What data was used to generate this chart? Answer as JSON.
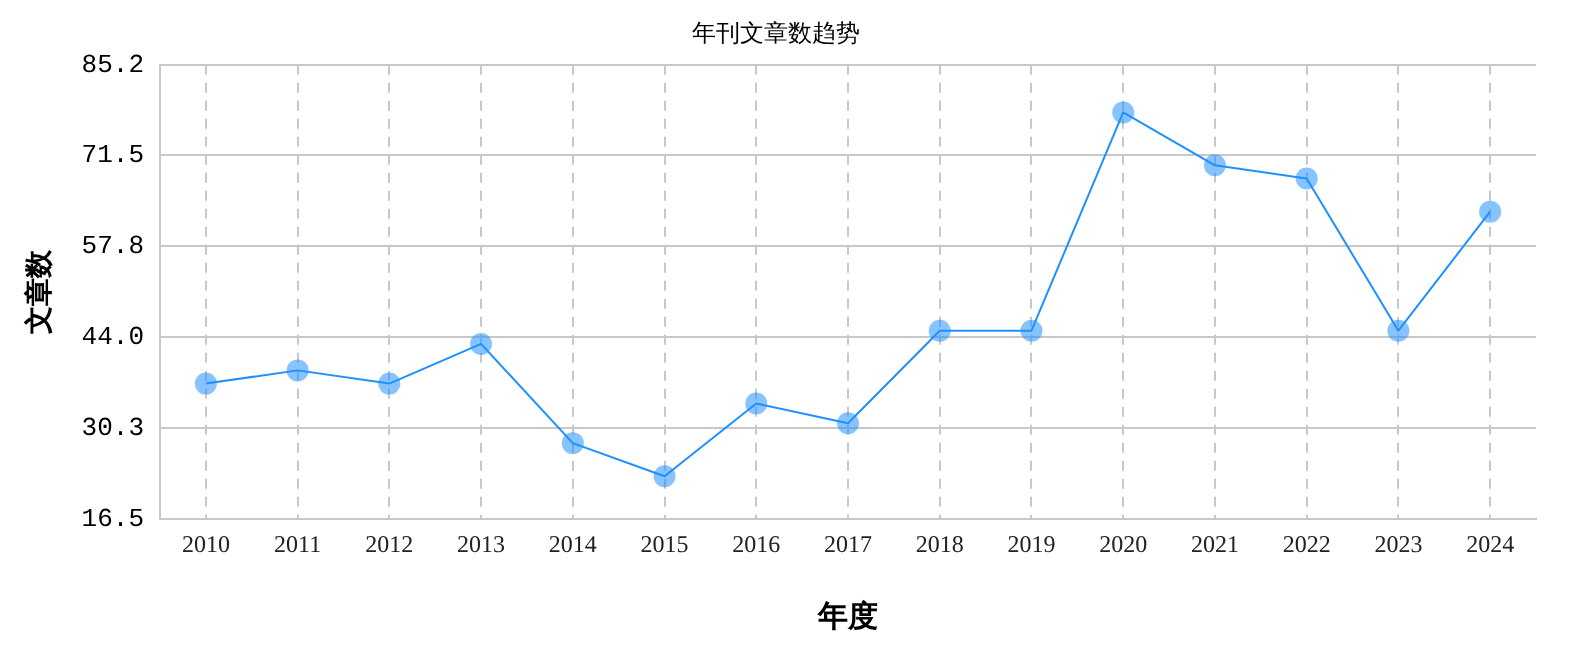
{
  "chart_data": {
    "type": "line",
    "title": "年刊文章数趋势",
    "xlabel": "年度",
    "ylabel": "文章数",
    "categories": [
      "2010",
      "2011",
      "2012",
      "2013",
      "2014",
      "2015",
      "2016",
      "2017",
      "2018",
      "2019",
      "2020",
      "2021",
      "2022",
      "2023",
      "2024"
    ],
    "series": [
      {
        "color": "#1e90ff",
        "values": [
          37,
          39,
          37,
          43,
          28,
          23,
          34,
          31,
          45,
          45,
          78,
          70,
          68,
          45,
          63
        ]
      }
    ],
    "ylim": [
      16.5,
      85.2
    ],
    "yticks": [
      {
        "value": 16.5,
        "label": "16.5"
      },
      {
        "value": 30.3,
        "label": "30.3"
      },
      {
        "value": 44.0,
        "label": "44.0"
      },
      {
        "value": 57.8,
        "label": "57.8"
      },
      {
        "value": 71.5,
        "label": "71.5"
      },
      {
        "value": 85.2,
        "label": "85.2"
      }
    ],
    "grid": true,
    "legend": false,
    "marker": "circle",
    "line_style": "solid"
  }
}
